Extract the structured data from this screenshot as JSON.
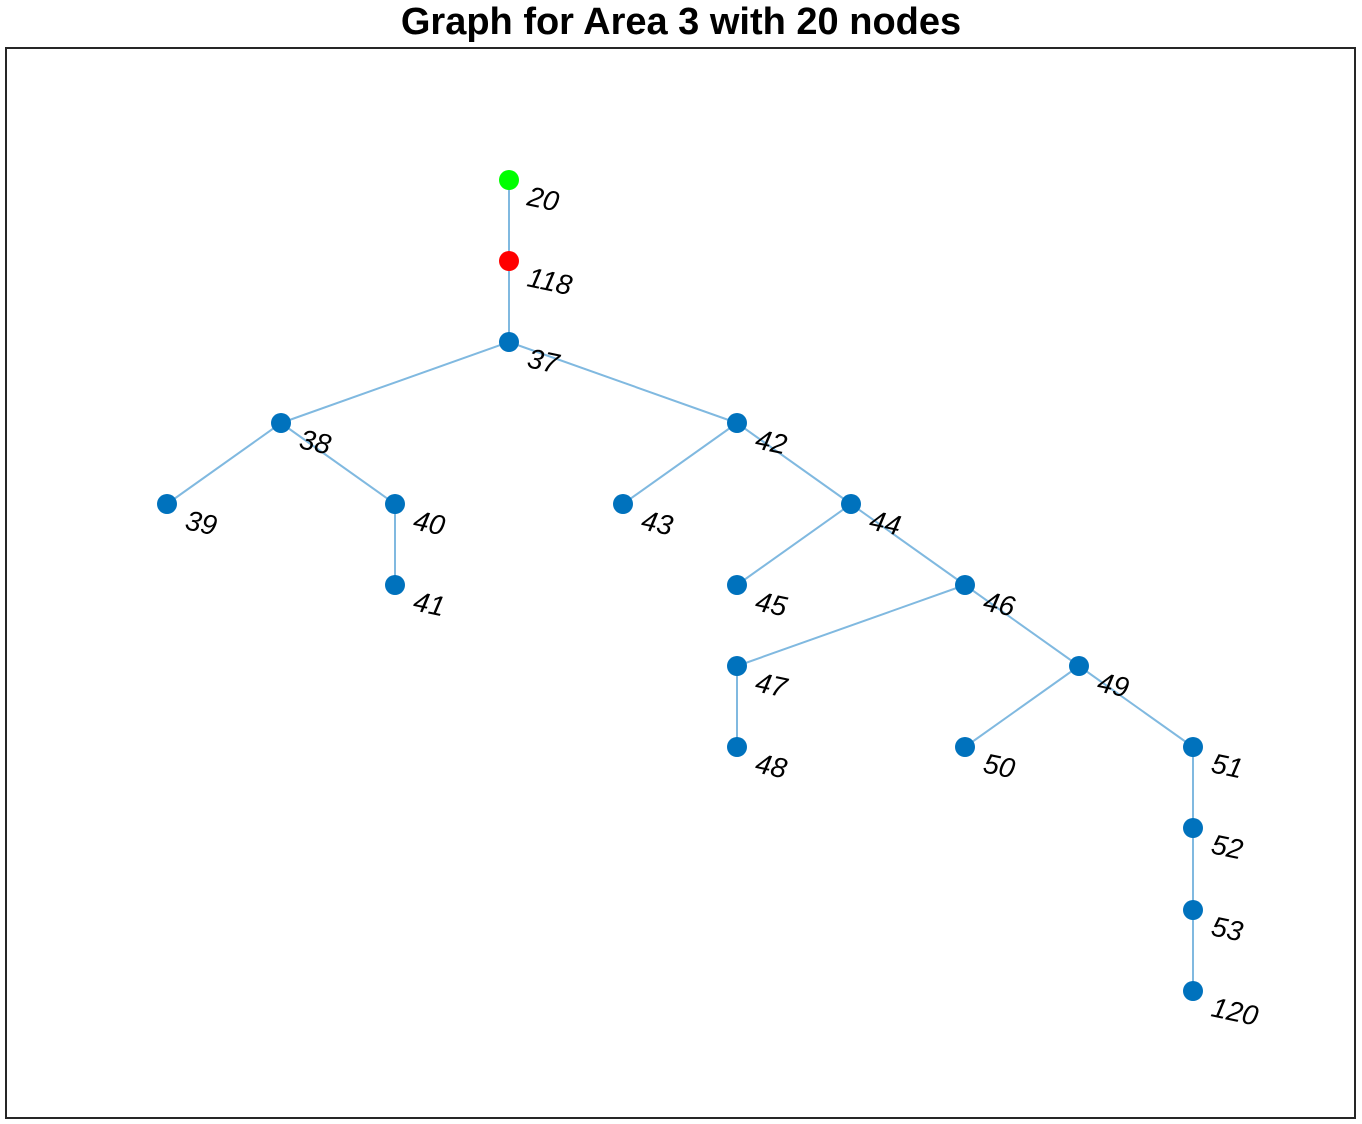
{
  "title": "Graph for Area 3 with 20 nodes",
  "colors": {
    "edge": "#80b9e0",
    "node_default": "#0072bd",
    "node_source": "#00ff00",
    "node_highlight": "#ff0000",
    "frame": "#262626"
  },
  "graph": {
    "nodes": [
      {
        "id": "20",
        "color": "#00ff00"
      },
      {
        "id": "118",
        "color": "#ff0000"
      },
      {
        "id": "37",
        "color": "#0072bd"
      },
      {
        "id": "38",
        "color": "#0072bd"
      },
      {
        "id": "42",
        "color": "#0072bd"
      },
      {
        "id": "39",
        "color": "#0072bd"
      },
      {
        "id": "40",
        "color": "#0072bd"
      },
      {
        "id": "43",
        "color": "#0072bd"
      },
      {
        "id": "44",
        "color": "#0072bd"
      },
      {
        "id": "41",
        "color": "#0072bd"
      },
      {
        "id": "45",
        "color": "#0072bd"
      },
      {
        "id": "46",
        "color": "#0072bd"
      },
      {
        "id": "47",
        "color": "#0072bd"
      },
      {
        "id": "49",
        "color": "#0072bd"
      },
      {
        "id": "48",
        "color": "#0072bd"
      },
      {
        "id": "50",
        "color": "#0072bd"
      },
      {
        "id": "51",
        "color": "#0072bd"
      },
      {
        "id": "52",
        "color": "#0072bd"
      },
      {
        "id": "53",
        "color": "#0072bd"
      },
      {
        "id": "120",
        "color": "#0072bd"
      }
    ],
    "edges": [
      [
        "20",
        "118"
      ],
      [
        "118",
        "37"
      ],
      [
        "37",
        "38"
      ],
      [
        "37",
        "42"
      ],
      [
        "38",
        "39"
      ],
      [
        "38",
        "40"
      ],
      [
        "40",
        "41"
      ],
      [
        "42",
        "43"
      ],
      [
        "42",
        "44"
      ],
      [
        "44",
        "45"
      ],
      [
        "44",
        "46"
      ],
      [
        "46",
        "47"
      ],
      [
        "46",
        "49"
      ],
      [
        "47",
        "48"
      ],
      [
        "49",
        "50"
      ],
      [
        "49",
        "51"
      ],
      [
        "51",
        "52"
      ],
      [
        "52",
        "53"
      ],
      [
        "53",
        "120"
      ]
    ]
  }
}
